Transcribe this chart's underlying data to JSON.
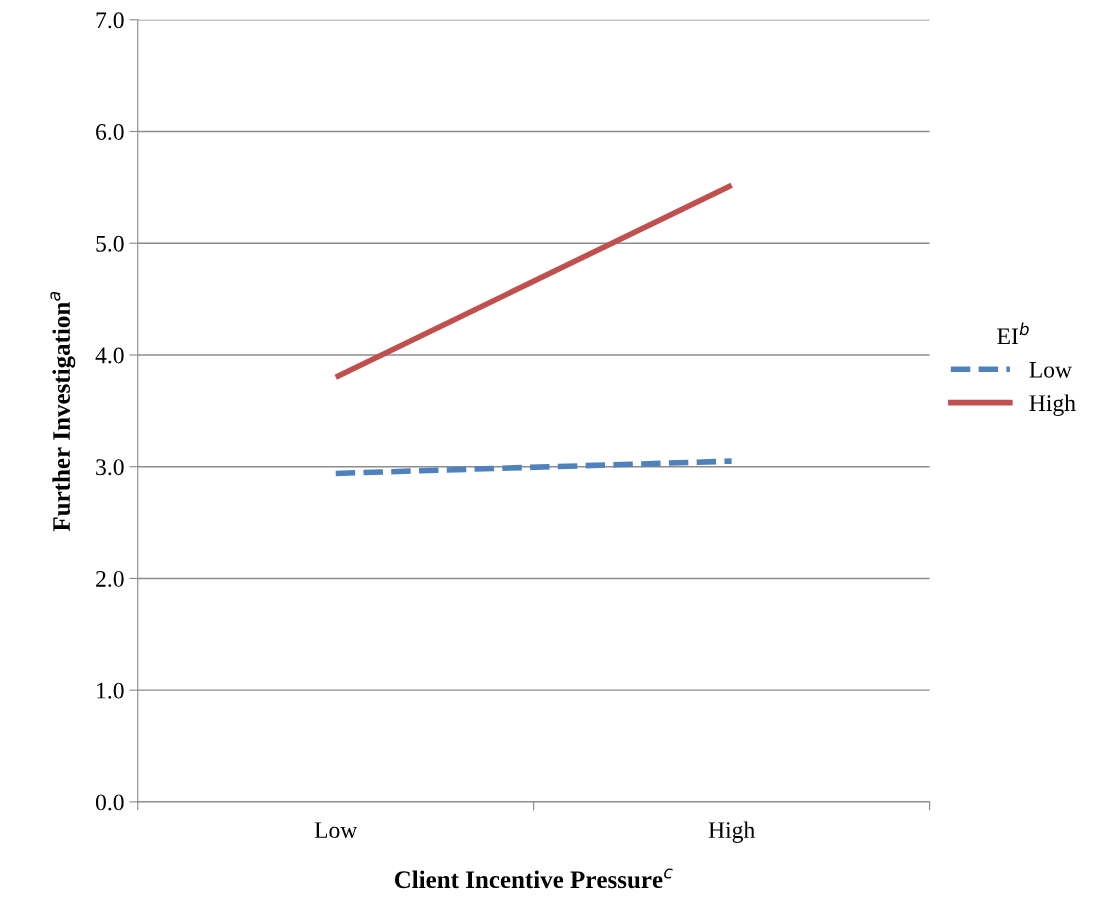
{
  "chart_data": {
    "type": "line",
    "xlabel": "Client Incentive Pressure$^{c}$",
    "ylabel": "Further Investigation$^{a}$",
    "legend_title": "EI$^{b}$",
    "categories": [
      "Low",
      "High"
    ],
    "series": [
      {
        "name": "Low",
        "color": "#4f81bd",
        "values": [
          2.94,
          3.05
        ],
        "line_style": "dashed"
      },
      {
        "name": "High",
        "color": "#c0504d",
        "values": [
          3.8,
          5.52
        ],
        "line_style": "solid"
      }
    ],
    "ylim": [
      0,
      7
    ],
    "yticks": [
      {
        "value": 0,
        "label": "0.0"
      },
      {
        "value": 1,
        "label": "1.0"
      },
      {
        "value": 2,
        "label": "2.0"
      },
      {
        "value": 3,
        "label": "3.0"
      },
      {
        "value": 4,
        "label": "4.0"
      },
      {
        "value": 5,
        "label": "5.0"
      },
      {
        "value": 6,
        "label": "6.0"
      },
      {
        "value": 7,
        "label": "7.0"
      }
    ],
    "grid": "y",
    "legend": "right",
    "marker": "none"
  }
}
